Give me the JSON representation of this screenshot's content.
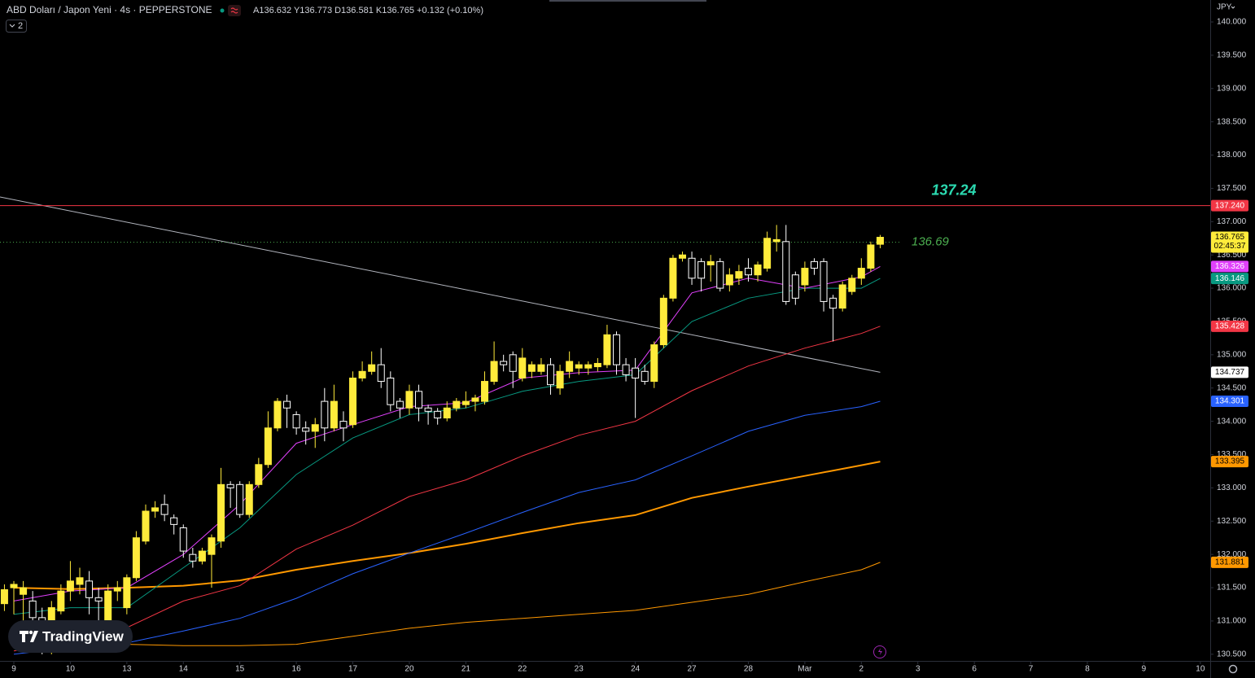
{
  "chart_data": {
    "type": "candlestick",
    "title": "ABD Doları / Japon Yeni · 4s · PEPPERSTONE",
    "ohlc_text": "A136.632 Y136.773 D136.581 K136.765 +0.132 (+0.10%)",
    "indicator_count": 2,
    "currency": "JPY",
    "countdown": "02:45:37",
    "watermark": "TradingView",
    "up_color": "#ffeb3b",
    "down_color": "#ffffff",
    "x": [
      -1,
      0,
      1,
      2,
      3,
      4,
      5,
      6,
      7,
      8,
      9,
      10,
      11,
      12,
      13,
      14,
      15,
      16,
      17,
      18,
      19,
      20,
      21,
      22,
      23,
      24,
      25,
      26,
      27,
      28,
      29,
      30,
      31,
      32,
      33,
      34,
      35,
      36,
      37,
      38,
      39,
      40,
      41,
      42,
      43,
      44,
      45,
      46,
      47,
      48,
      49,
      50,
      51,
      52,
      53,
      54,
      55,
      56,
      57,
      58,
      59,
      60,
      61,
      62,
      63,
      64,
      65,
      66,
      67,
      68,
      69,
      70,
      71,
      72,
      73,
      74,
      75,
      76,
      77,
      78,
      79,
      80,
      81,
      82,
      83,
      84,
      85,
      86,
      87,
      88,
      89,
      90,
      91,
      92
    ],
    "open": [
      131.26,
      131.5,
      131.4,
      131.3,
      131.05,
      130.85,
      131.15,
      131.45,
      131.55,
      131.6,
      131.35,
      130.95,
      131.45,
      131.2,
      131.65,
      132.2,
      132.65,
      132.75,
      132.55,
      132.4,
      132.0,
      131.9,
      132.0,
      132.2,
      133.05,
      133.05,
      132.6,
      133.05,
      133.35,
      133.9,
      134.3,
      134.1,
      133.9,
      133.85,
      134.3,
      133.9,
      134.0,
      133.95,
      134.65,
      134.75,
      134.85,
      134.65,
      134.3,
      134.2,
      134.45,
      134.2,
      134.15,
      134.05,
      134.2,
      134.25,
      134.3,
      134.3,
      134.6,
      134.9,
      135.0,
      134.65,
      134.75,
      134.75,
      134.85,
      134.5,
      134.75,
      134.8,
      134.8,
      134.82,
      134.85,
      135.3,
      134.85,
      134.8,
      134.75,
      134.6,
      135.15,
      135.85,
      136.45,
      136.45,
      136.4,
      136.35,
      136.4,
      136.05,
      136.15,
      136.3,
      136.2,
      136.3,
      136.7,
      136.7,
      136.2,
      136.05,
      136.4,
      136.4,
      135.85,
      135.7,
      135.95,
      136.15,
      136.3,
      136.66
    ],
    "high": [
      131.55,
      131.6,
      131.6,
      131.45,
      131.2,
      131.3,
      131.55,
      131.9,
      131.8,
      131.75,
      131.5,
      131.55,
      131.6,
      131.7,
      132.35,
      132.75,
      132.8,
      132.9,
      132.6,
      132.45,
      132.1,
      132.1,
      132.3,
      133.3,
      133.1,
      133.1,
      133.1,
      133.45,
      134.15,
      134.35,
      134.4,
      134.15,
      134.0,
      134.05,
      134.5,
      134.55,
      134.15,
      134.75,
      134.9,
      135.05,
      135.1,
      134.75,
      134.35,
      134.55,
      134.55,
      134.25,
      134.2,
      134.3,
      134.35,
      134.45,
      134.4,
      134.75,
      135.2,
      135.0,
      135.05,
      135.1,
      134.9,
      134.95,
      134.95,
      134.85,
      135.05,
      134.9,
      134.9,
      134.95,
      135.45,
      135.35,
      134.95,
      134.95,
      134.85,
      135.2,
      135.9,
      136.5,
      136.55,
      136.55,
      136.45,
      136.5,
      136.45,
      136.3,
      136.35,
      136.45,
      136.4,
      136.85,
      136.95,
      136.95,
      136.25,
      136.4,
      136.45,
      136.45,
      135.9,
      136.1,
      136.2,
      136.45,
      136.7,
      136.8
    ],
    "low": [
      131.15,
      131.1,
      131.0,
      130.6,
      130.5,
      130.5,
      131.1,
      131.3,
      131.4,
      131.1,
      131.0,
      130.85,
      131.3,
      131.1,
      131.6,
      132.15,
      132.55,
      132.5,
      132.3,
      131.95,
      131.8,
      131.85,
      131.5,
      132.1,
      132.7,
      132.55,
      132.55,
      133.0,
      133.3,
      133.85,
      133.9,
      133.8,
      133.65,
      133.6,
      133.7,
      133.85,
      133.7,
      133.9,
      134.6,
      134.7,
      134.5,
      134.15,
      134.05,
      134.1,
      134.0,
      133.95,
      133.95,
      134.0,
      134.15,
      134.2,
      134.15,
      134.25,
      134.55,
      134.75,
      134.5,
      134.6,
      134.65,
      134.7,
      134.4,
      134.4,
      134.65,
      134.7,
      134.7,
      134.75,
      134.8,
      134.7,
      134.6,
      134.05,
      134.55,
      134.5,
      135.1,
      135.8,
      136.4,
      136.05,
      135.95,
      136.1,
      135.95,
      135.95,
      136.05,
      136.1,
      136.1,
      136.25,
      136.55,
      135.75,
      135.75,
      135.95,
      136.2,
      135.65,
      135.2,
      135.65,
      135.9,
      136.05,
      136.25,
      136.6
    ],
    "close": [
      131.47,
      131.55,
      131.5,
      131.05,
      130.85,
      131.2,
      131.45,
      131.6,
      131.65,
      131.35,
      131.3,
      131.45,
      131.5,
      131.65,
      132.25,
      132.65,
      132.7,
      132.6,
      132.45,
      132.05,
      131.9,
      132.05,
      132.25,
      133.05,
      133.0,
      132.6,
      133.05,
      133.35,
      133.9,
      134.3,
      134.2,
      133.9,
      133.85,
      133.95,
      133.9,
      134.3,
      133.9,
      134.65,
      134.75,
      134.85,
      134.6,
      134.25,
      134.2,
      134.45,
      134.2,
      134.15,
      134.05,
      134.2,
      134.3,
      134.3,
      134.35,
      134.6,
      134.9,
      134.85,
      134.75,
      134.95,
      134.85,
      134.85,
      134.55,
      134.75,
      134.9,
      134.85,
      134.85,
      134.87,
      135.3,
      134.85,
      134.7,
      134.65,
      134.6,
      135.15,
      135.85,
      136.45,
      136.5,
      136.15,
      136.15,
      136.4,
      136.0,
      136.2,
      136.25,
      136.2,
      136.35,
      136.75,
      136.73,
      135.8,
      135.85,
      136.3,
      136.3,
      135.8,
      135.7,
      136.05,
      136.15,
      136.3,
      136.65,
      136.765
    ],
    "overlays": [
      {
        "color": "#ff9800",
        "width": 1,
        "label_text_color": "#000000",
        "x": [
          0,
          6,
          12,
          18,
          24,
          30,
          36,
          42,
          48,
          54,
          60,
          66,
          72,
          78,
          84,
          90,
          92
        ],
        "values": [
          130.72,
          130.67,
          130.65,
          130.63,
          130.63,
          130.65,
          130.77,
          130.89,
          130.98,
          131.04,
          131.1,
          131.16,
          131.28,
          131.4,
          131.59,
          131.77,
          131.881
        ]
      },
      {
        "color": "#ff9800",
        "width": 2,
        "label_text_color": "#000000",
        "x": [
          0,
          6,
          12,
          18,
          24,
          30,
          36,
          42,
          48,
          54,
          60,
          66,
          72,
          78,
          84,
          90,
          92
        ],
        "values": [
          131.5,
          131.48,
          131.5,
          131.53,
          131.61,
          131.77,
          131.9,
          132.02,
          132.16,
          132.32,
          132.47,
          132.59,
          132.85,
          133.02,
          133.18,
          133.34,
          133.395
        ]
      },
      {
        "color": "#2962ff",
        "width": 1,
        "label_text_color": "#ffffff",
        "x": [
          0,
          6,
          12,
          18,
          24,
          30,
          36,
          42,
          48,
          54,
          60,
          66,
          72,
          78,
          84,
          90,
          92
        ],
        "values": [
          130.5,
          130.6,
          130.67,
          130.85,
          131.04,
          131.34,
          131.71,
          132.02,
          132.32,
          132.63,
          132.93,
          133.12,
          133.48,
          133.85,
          134.09,
          134.22,
          134.301
        ]
      },
      {
        "color": "#b2b5be",
        "width": 1,
        "label_text_color": "#000000",
        "label_fill": "#ffffff",
        "x": [
          -1.47,
          92
        ],
        "values": [
          137.37,
          134.737
        ]
      },
      {
        "color": "#f23645",
        "width": 1,
        "label_text_color": "#ffffff",
        "x": [
          0,
          6,
          12,
          18,
          24,
          30,
          36,
          42,
          48,
          54,
          60,
          66,
          72,
          78,
          84,
          90,
          92
        ],
        "values": [
          130.55,
          130.7,
          130.9,
          131.3,
          131.53,
          132.08,
          132.44,
          132.87,
          133.12,
          133.48,
          133.79,
          134.0,
          134.46,
          134.83,
          135.1,
          135.32,
          135.428
        ]
      },
      {
        "color": "#089981",
        "width": 1,
        "label_text_color": "#ffffff",
        "x": [
          0,
          6,
          12,
          18,
          24,
          30,
          36,
          42,
          48,
          54,
          60,
          66,
          72,
          78,
          84,
          90,
          92
        ],
        "values": [
          131.1,
          131.2,
          131.2,
          131.8,
          132.4,
          133.2,
          133.75,
          134.1,
          134.2,
          134.45,
          134.6,
          134.7,
          135.5,
          135.85,
          136.0,
          136.0,
          136.146
        ]
      },
      {
        "color": "#e040fb",
        "width": 1,
        "label_text_color": "#ffffff",
        "x": [
          0,
          6,
          12,
          18,
          24,
          30,
          36,
          42,
          48,
          54,
          60,
          66,
          72,
          78,
          84,
          90,
          92
        ],
        "values": [
          131.3,
          131.45,
          131.5,
          132.0,
          132.75,
          133.67,
          133.95,
          134.22,
          134.28,
          134.65,
          134.73,
          134.77,
          135.93,
          136.15,
          136.0,
          136.17,
          136.326
        ]
      }
    ],
    "levels": [
      {
        "value": 137.24,
        "color": "#f23645",
        "text_color": "#2bd9b0",
        "dotted": false,
        "axis_label": "137.240"
      },
      {
        "value": 136.69,
        "color": "#4caf50",
        "text_color": "#4caf50",
        "dotted": true
      }
    ],
    "xlim": [
      -1.47,
      127.05
    ],
    "xticks": [
      {
        "value": 0,
        "label": "9"
      },
      {
        "value": 6,
        "label": "10"
      },
      {
        "value": 12,
        "label": "13"
      },
      {
        "value": 18,
        "label": "14"
      },
      {
        "value": 24,
        "label": "15"
      },
      {
        "value": 30,
        "label": "16"
      },
      {
        "value": 36,
        "label": "17"
      },
      {
        "value": 42,
        "label": "20"
      },
      {
        "value": 48,
        "label": "21"
      },
      {
        "value": 54,
        "label": "22"
      },
      {
        "value": 60,
        "label": "23"
      },
      {
        "value": 66,
        "label": "24"
      },
      {
        "value": 72,
        "label": "27"
      },
      {
        "value": 78,
        "label": "28"
      },
      {
        "value": 84,
        "label": "Mar"
      },
      {
        "value": 90,
        "label": "2"
      },
      {
        "value": 96,
        "label": "3"
      },
      {
        "value": 102,
        "label": "6"
      },
      {
        "value": 108,
        "label": "7"
      },
      {
        "value": 114,
        "label": "8"
      },
      {
        "value": 120,
        "label": "9"
      },
      {
        "value": 126,
        "label": "10"
      }
    ],
    "ylim": [
      130.4,
      140.33
    ],
    "yticks": [
      {
        "value": 130.5,
        "label": "130.500"
      },
      {
        "value": 131,
        "label": "131.000"
      },
      {
        "value": 131.5,
        "label": "131.500"
      },
      {
        "value": 132,
        "label": "132.000"
      },
      {
        "value": 132.5,
        "label": "132.500"
      },
      {
        "value": 133,
        "label": "133.000"
      },
      {
        "value": 133.5,
        "label": "133.500"
      },
      {
        "value": 134,
        "label": "134.000"
      },
      {
        "value": 134.5,
        "label": "134.500"
      },
      {
        "value": 135,
        "label": "135.000"
      },
      {
        "value": 135.5,
        "label": "135.500"
      },
      {
        "value": 136,
        "label": "136.000"
      },
      {
        "value": 136.5,
        "label": "136.500"
      },
      {
        "value": 137,
        "label": "137.000"
      },
      {
        "value": 137.5,
        "label": "137.500"
      },
      {
        "value": 138,
        "label": "138.000"
      },
      {
        "value": 138.5,
        "label": "138.500"
      },
      {
        "value": 139,
        "label": "139.000"
      },
      {
        "value": 139.5,
        "label": "139.500"
      },
      {
        "value": 140,
        "label": "140.000"
      }
    ]
  }
}
